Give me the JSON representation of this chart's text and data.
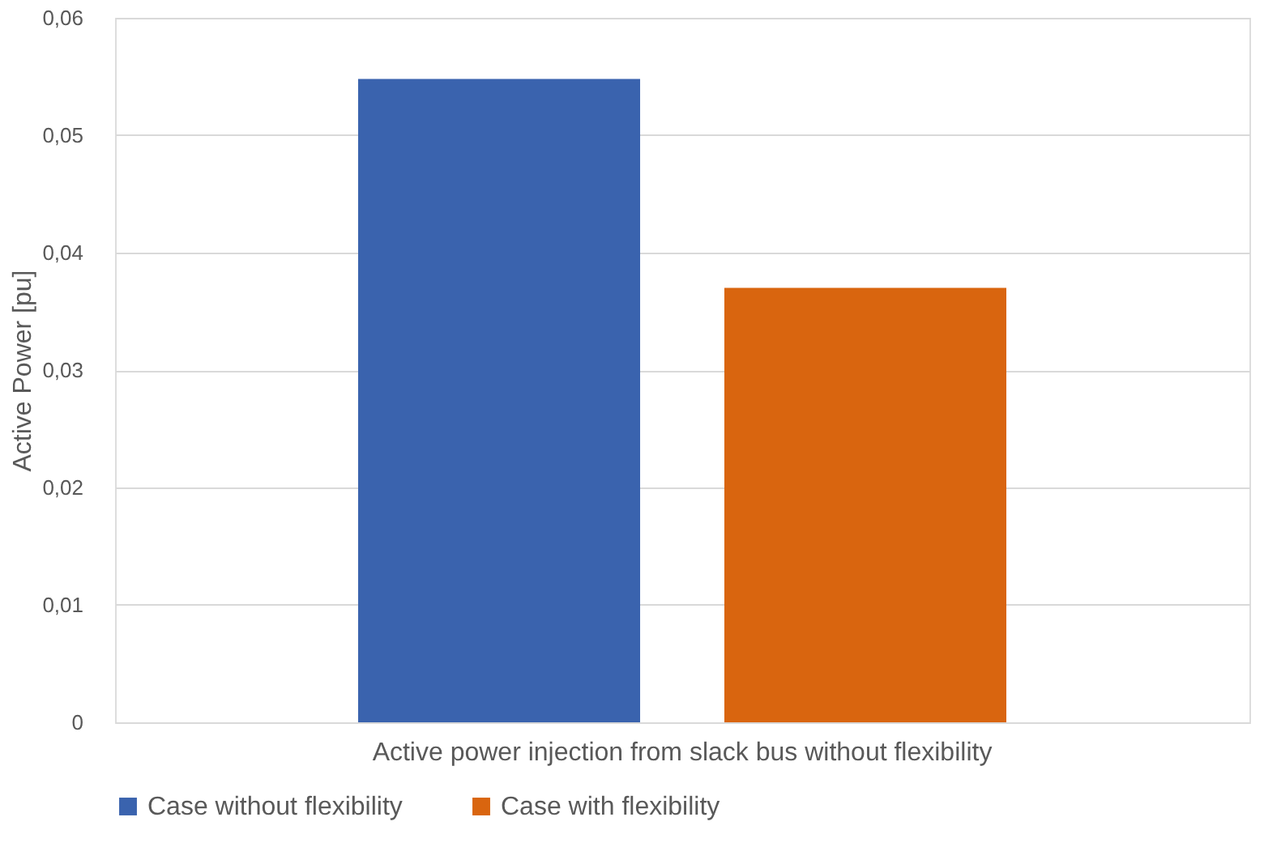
{
  "chart_data": {
    "type": "bar",
    "ylabel": "Active Power [pu]",
    "categories": [
      "Active power injection from slack bus without flexibility"
    ],
    "series": [
      {
        "name": "Case without flexibility",
        "color": "#3a63ae",
        "values": [
          0.0548
        ]
      },
      {
        "name": "Case with flexibility",
        "color": "#d9650f",
        "values": [
          0.037
        ]
      }
    ],
    "ylim": [
      0,
      0.06
    ],
    "yticks": [
      {
        "value": 0,
        "label": "0"
      },
      {
        "value": 0.01,
        "label": "0,01"
      },
      {
        "value": 0.02,
        "label": "0,02"
      },
      {
        "value": 0.03,
        "label": "0,03"
      },
      {
        "value": 0.04,
        "label": "0,04"
      },
      {
        "value": 0.05,
        "label": "0,05"
      },
      {
        "value": 0.06,
        "label": "0,06"
      }
    ],
    "grid": "y",
    "legend": "bottom"
  }
}
